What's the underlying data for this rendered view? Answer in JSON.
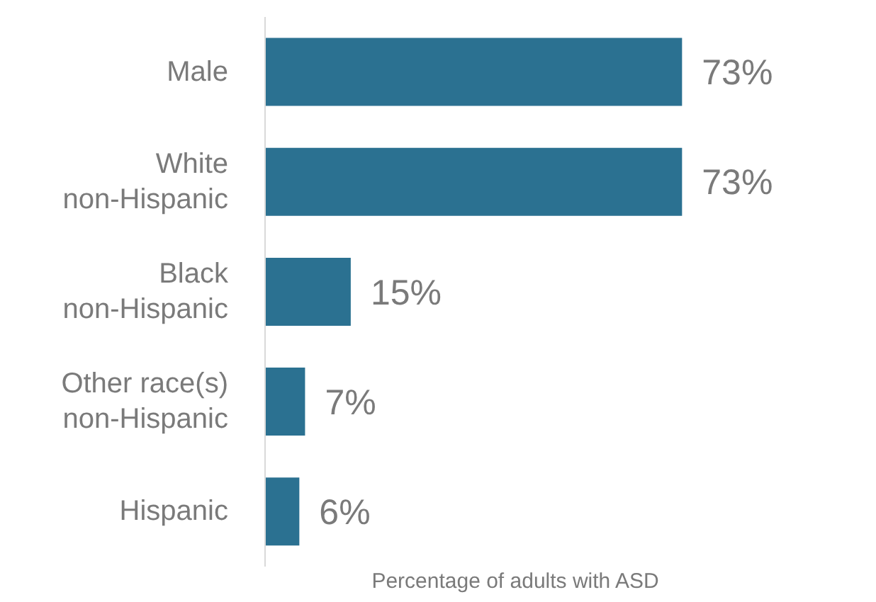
{
  "chart_data": {
    "type": "bar",
    "orientation": "horizontal",
    "xlabel": "Percentage  of adults with ASD",
    "categories": [
      "Male",
      "White\nnon-Hispanic",
      "Black\nnon-Hispanic",
      "Other race(s)\nnon-Hispanic",
      "Hispanic"
    ],
    "values": [
      73,
      73,
      15,
      7,
      6
    ],
    "value_labels": [
      "73%",
      "73%",
      "15%",
      "7%",
      "6%"
    ],
    "color": "#2b7191",
    "grid": false
  }
}
